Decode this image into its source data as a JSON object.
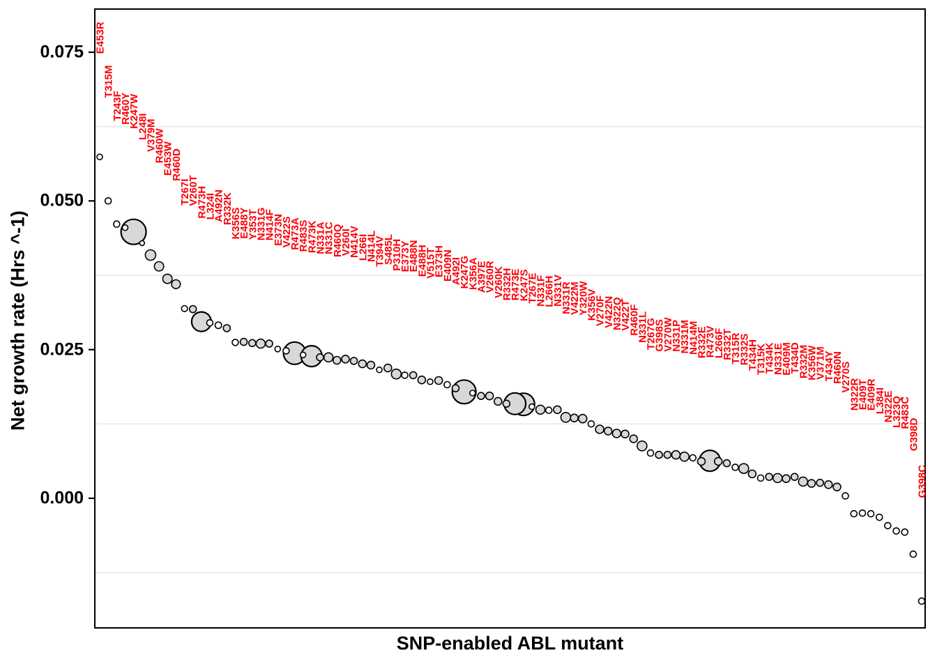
{
  "figure": {
    "y_axis": {
      "title": "Net growth rate (Hrs ^-1)",
      "ticks": [
        "0.075",
        "0.050",
        "0.025",
        "0.000"
      ],
      "tick_values": [
        0.075,
        0.05,
        0.025,
        0.0
      ]
    },
    "x_axis": {
      "title": "SNP-enabled ABL mutant"
    },
    "colors": {
      "mutant_label": "#FB0007",
      "point_fill_large": "#d8d8d8",
      "point_fill_small": "#fdfdfd",
      "point_stroke": "#000000",
      "gridline": "#e7e7e7",
      "panel_border": "#000000",
      "axis_text": "#000000"
    }
  },
  "chart_data": {
    "type": "scatter",
    "title": "",
    "xlabel": "SNP-enabled ABL mutant",
    "ylabel": "Net growth rate (Hrs ^-1)",
    "ylim": [
      -0.0218,
      0.0823
    ],
    "yticks": [
      0.075,
      0.05,
      0.025,
      0.0
    ],
    "ytick_labels": [
      "0.075",
      "0.050",
      "0.025",
      "0.000"
    ],
    "minor_gridlines": [
      0.0625,
      0.0375,
      0.0125,
      -0.0125
    ],
    "grid": "horizontal-minor-only",
    "legend": "none",
    "x_axis_note": "mutants ordered by decreasing net growth rate; names drawn as red vertical labels above each point; bubble size varies per mutant",
    "points": [
      {
        "label": "E453R",
        "value": 0.0574,
        "r": 4
      },
      {
        "label": "T315M",
        "value": 0.05,
        "r": 4.5
      },
      {
        "label": "T243F",
        "value": 0.0461,
        "r": 4.5
      },
      {
        "label": "R460Y",
        "value": 0.0455,
        "r": 4
      },
      {
        "label": "K247W",
        "value": 0.0448,
        "r": 18
      },
      {
        "label": "L248I",
        "value": 0.0429,
        "r": 3.5
      },
      {
        "label": "V379M",
        "value": 0.0409,
        "r": 7.5
      },
      {
        "label": "R460W",
        "value": 0.039,
        "r": 6.7
      },
      {
        "label": "E453W",
        "value": 0.0369,
        "r": 6.7
      },
      {
        "label": "R460D",
        "value": 0.036,
        "r": 6.3
      },
      {
        "label": "T267I",
        "value": 0.0319,
        "r": 4.3
      },
      {
        "label": "V260T",
        "value": 0.0318,
        "r": 5
      },
      {
        "label": "R473H",
        "value": 0.0297,
        "r": 14
      },
      {
        "label": "L324I",
        "value": 0.0295,
        "r": 4.5
      },
      {
        "label": "A492N",
        "value": 0.0291,
        "r": 4.7
      },
      {
        "label": "R332K",
        "value": 0.0286,
        "r": 5
      },
      {
        "label": "K356S",
        "value": 0.0262,
        "r": 4.5
      },
      {
        "label": "E488Y",
        "value": 0.0263,
        "r": 5
      },
      {
        "label": "Y353T",
        "value": 0.0261,
        "r": 5
      },
      {
        "label": "N331G",
        "value": 0.026,
        "r": 6.5
      },
      {
        "label": "N414F",
        "value": 0.026,
        "r": 5
      },
      {
        "label": "E373N",
        "value": 0.0251,
        "r": 4
      },
      {
        "label": "V422S",
        "value": 0.0248,
        "r": 4.5
      },
      {
        "label": "R473A",
        "value": 0.0244,
        "r": 16
      },
      {
        "label": "R483S",
        "value": 0.0241,
        "r": 4
      },
      {
        "label": "R473K",
        "value": 0.0239,
        "r": 15
      },
      {
        "label": "N331A",
        "value": 0.0237,
        "r": 5
      },
      {
        "label": "N331C",
        "value": 0.0237,
        "r": 6.5
      },
      {
        "label": "R460Q",
        "value": 0.0232,
        "r": 5.5
      },
      {
        "label": "V260I",
        "value": 0.0234,
        "r": 5.5
      },
      {
        "label": "N414V",
        "value": 0.0231,
        "r": 5
      },
      {
        "label": "L266I",
        "value": 0.0226,
        "r": 5.5
      },
      {
        "label": "N414L",
        "value": 0.0224,
        "r": 5.5
      },
      {
        "label": "T394V",
        "value": 0.0216,
        "r": 4
      },
      {
        "label": "S485L",
        "value": 0.0219,
        "r": 5.5
      },
      {
        "label": "P310H",
        "value": 0.0209,
        "r": 7
      },
      {
        "label": "E373Y",
        "value": 0.0207,
        "r": 4.5
      },
      {
        "label": "E488N",
        "value": 0.0207,
        "r": 5
      },
      {
        "label": "E488H",
        "value": 0.0199,
        "r": 5.5
      },
      {
        "label": "V515T",
        "value": 0.0196,
        "r": 4
      },
      {
        "label": "E373H",
        "value": 0.0198,
        "r": 5.5
      },
      {
        "label": "E409N",
        "value": 0.0191,
        "r": 4.5
      },
      {
        "label": "A492I",
        "value": 0.0185,
        "r": 5
      },
      {
        "label": "K247G",
        "value": 0.0179,
        "r": 17
      },
      {
        "label": "K356A",
        "value": 0.0177,
        "r": 4
      },
      {
        "label": "A397E",
        "value": 0.0172,
        "r": 5
      },
      {
        "label": "V260R",
        "value": 0.0172,
        "r": 5.5
      },
      {
        "label": "V260K",
        "value": 0.0163,
        "r": 5.5
      },
      {
        "label": "R332H",
        "value": 0.0159,
        "r": 5
      },
      {
        "label": "R473E",
        "value": 0.0159,
        "r": 15.5
      },
      {
        "label": "K247S",
        "value": 0.0158,
        "r": 16
      },
      {
        "label": "T267E",
        "value": 0.0154,
        "r": 4
      },
      {
        "label": "N331F",
        "value": 0.0149,
        "r": 6.5
      },
      {
        "label": "L266H",
        "value": 0.0148,
        "r": 4.5
      },
      {
        "label": "N331V",
        "value": 0.0149,
        "r": 5.5
      },
      {
        "label": "N331R",
        "value": 0.0136,
        "r": 7
      },
      {
        "label": "V422M",
        "value": 0.0135,
        "r": 5.5
      },
      {
        "label": "Y320W",
        "value": 0.0134,
        "r": 6
      },
      {
        "label": "K356V",
        "value": 0.0125,
        "r": 4.5
      },
      {
        "label": "V270F",
        "value": 0.0116,
        "r": 6
      },
      {
        "label": "V422N",
        "value": 0.0113,
        "r": 5.5
      },
      {
        "label": "N322Q",
        "value": 0.0109,
        "r": 6
      },
      {
        "label": "V422T",
        "value": 0.0108,
        "r": 5.5
      },
      {
        "label": "R460F",
        "value": 0.01,
        "r": 5.5
      },
      {
        "label": "N331L",
        "value": 0.0088,
        "r": 7
      },
      {
        "label": "T267G",
        "value": 0.0076,
        "r": 4.5
      },
      {
        "label": "G398S",
        "value": 0.0073,
        "r": 5
      },
      {
        "label": "V270W",
        "value": 0.0073,
        "r": 5
      },
      {
        "label": "N331P",
        "value": 0.0073,
        "r": 6
      },
      {
        "label": "N331M",
        "value": 0.007,
        "r": 6.5
      },
      {
        "label": "N414M",
        "value": 0.0068,
        "r": 4.5
      },
      {
        "label": "R332E",
        "value": 0.0062,
        "r": 5.5
      },
      {
        "label": "R473V",
        "value": 0.0063,
        "r": 15
      },
      {
        "label": "L266F",
        "value": 0.0062,
        "r": 5.5
      },
      {
        "label": "R332T",
        "value": 0.0059,
        "r": 5
      },
      {
        "label": "T315R",
        "value": 0.0052,
        "r": 4.5
      },
      {
        "label": "R332S",
        "value": 0.005,
        "r": 7
      },
      {
        "label": "T434H",
        "value": 0.0041,
        "r": 5.5
      },
      {
        "label": "T315K",
        "value": 0.0034,
        "r": 4.5
      },
      {
        "label": "T434K",
        "value": 0.0036,
        "r": 5
      },
      {
        "label": "N331E",
        "value": 0.0034,
        "r": 6.5
      },
      {
        "label": "E409M",
        "value": 0.0033,
        "r": 5.5
      },
      {
        "label": "T434D",
        "value": 0.0036,
        "r": 5
      },
      {
        "label": "R332M",
        "value": 0.0028,
        "r": 6.5
      },
      {
        "label": "K356W",
        "value": 0.0025,
        "r": 5.5
      },
      {
        "label": "V371M",
        "value": 0.0026,
        "r": 5
      },
      {
        "label": "T434Y",
        "value": 0.0023,
        "r": 5.5
      },
      {
        "label": "R460N",
        "value": 0.0019,
        "r": 5.5
      },
      {
        "label": "V270S",
        "value": 0.0004,
        "r": 4.5
      },
      {
        "label": "N322R",
        "value": -0.0026,
        "r": 4.5
      },
      {
        "label": "E409T",
        "value": -0.0025,
        "r": 4.5
      },
      {
        "label": "E409R",
        "value": -0.0026,
        "r": 4.5
      },
      {
        "label": "L384I",
        "value": -0.0032,
        "r": 4.5
      },
      {
        "label": "N322E",
        "value": -0.0046,
        "r": 4.5
      },
      {
        "label": "L323Q",
        "value": -0.0055,
        "r": 4.5
      },
      {
        "label": "R483C",
        "value": -0.0057,
        "r": 4.5
      },
      {
        "label": "G398D",
        "value": -0.0094,
        "r": 4.5
      },
      {
        "label": "G398C",
        "value": -0.0173,
        "r": 4.5
      }
    ]
  }
}
